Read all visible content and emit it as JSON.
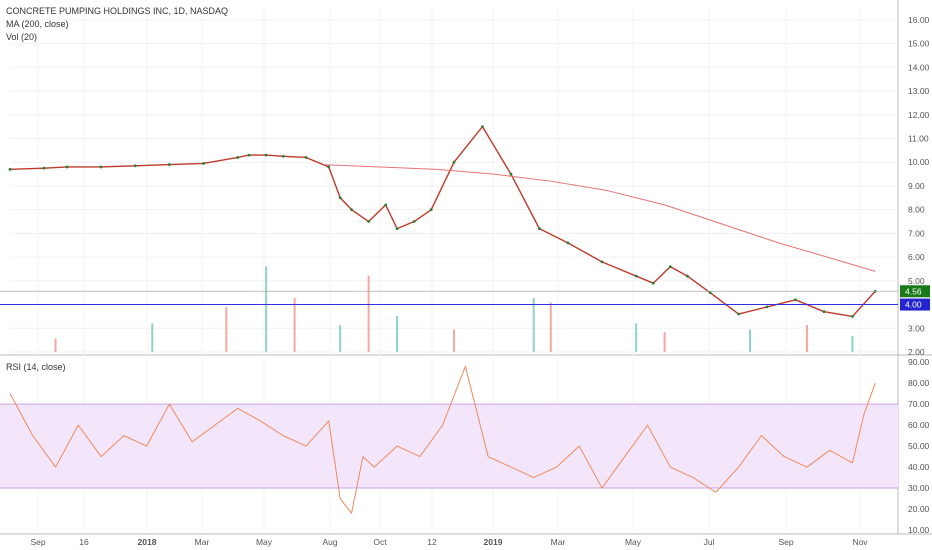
{
  "chart_data": {
    "type": "line",
    "title": "CONCRETE PUMPING HOLDINGS INC, 1D, NASDAQ",
    "indicators": [
      "MA (200, close)",
      "Vol (20)",
      "RSI (14, close)"
    ],
    "x_tick_labels": [
      "Sep",
      "16",
      "2018",
      "Mar",
      "May",
      "Aug",
      "Oct",
      "12",
      "2019",
      "Mar",
      "May",
      "Jul",
      "Sep",
      "Nov"
    ],
    "price_axis": {
      "ticks": [
        "16.00",
        "15.00",
        "14.00",
        "13.00",
        "12.00",
        "11.00",
        "10.00",
        "9.00",
        "8.00",
        "7.00",
        "6.00",
        "5.00",
        "3.00",
        "2.00"
      ],
      "ylim": [
        2,
        16.5
      ]
    },
    "rsi_axis": {
      "ticks": [
        "90.00",
        "80.00",
        "70.00",
        "60.00",
        "50.00",
        "40.00",
        "30.00",
        "20.00",
        "10.00"
      ],
      "ylim": [
        10,
        92
      ],
      "band": [
        30,
        70
      ]
    },
    "price_badges": [
      {
        "label": "4.56",
        "color": "#1a7a1a"
      },
      {
        "label": "4.00",
        "color": "#2424d0"
      }
    ],
    "horizontal_line": {
      "value": 4.0,
      "color": "#3030e0"
    },
    "series": [
      {
        "name": "Price (close, approx.)",
        "x": [
          0,
          6,
          10,
          16,
          22,
          28,
          34,
          40,
          42,
          45,
          48,
          52,
          56,
          58,
          60,
          63,
          66,
          68,
          71,
          74,
          78,
          83,
          88,
          93,
          98,
          104,
          110,
          113,
          116,
          119,
          123,
          128,
          133,
          138,
          143,
          148,
          152
        ],
        "values": [
          9.7,
          9.75,
          9.8,
          9.8,
          9.85,
          9.9,
          9.95,
          10.2,
          10.3,
          10.3,
          10.25,
          10.2,
          9.8,
          8.5,
          8.0,
          7.5,
          8.2,
          7.2,
          7.5,
          8.0,
          10.0,
          11.5,
          9.5,
          7.2,
          6.6,
          5.8,
          5.2,
          4.9,
          5.6,
          5.2,
          4.5,
          3.6,
          3.9,
          4.2,
          3.7,
          3.5,
          4.56
        ]
      },
      {
        "name": "MA (200, close)",
        "x": [
          55,
          65,
          75,
          85,
          95,
          105,
          115,
          125,
          135,
          145,
          152
        ],
        "values": [
          9.9,
          9.8,
          9.7,
          9.5,
          9.2,
          8.8,
          8.2,
          7.4,
          6.6,
          5.9,
          5.4
        ]
      }
    ],
    "volume": {
      "x": [
        8,
        25,
        38,
        45,
        50,
        58,
        63,
        68,
        78,
        92,
        95,
        110,
        115,
        130,
        140,
        148
      ],
      "values": [
        1.5,
        3.2,
        5.0,
        9.5,
        6.0,
        3.0,
        8.5,
        4.0,
        2.5,
        6.0,
        5.5,
        3.2,
        2.2,
        2.5,
        3.0,
        1.8
      ]
    },
    "rsi": {
      "x": [
        0,
        4,
        8,
        12,
        16,
        20,
        24,
        28,
        32,
        36,
        40,
        44,
        48,
        52,
        56,
        58,
        60,
        62,
        64,
        68,
        72,
        76,
        80,
        84,
        88,
        92,
        96,
        100,
        104,
        108,
        112,
        116,
        120,
        124,
        128,
        132,
        136,
        140,
        144,
        148,
        150,
        152
      ],
      "values": [
        75,
        55,
        40,
        60,
        45,
        55,
        50,
        70,
        52,
        60,
        68,
        62,
        55,
        50,
        62,
        25,
        18,
        45,
        40,
        50,
        45,
        60,
        88,
        45,
        40,
        35,
        40,
        50,
        30,
        45,
        60,
        40,
        35,
        28,
        40,
        55,
        45,
        40,
        48,
        42,
        65,
        80
      ]
    }
  }
}
